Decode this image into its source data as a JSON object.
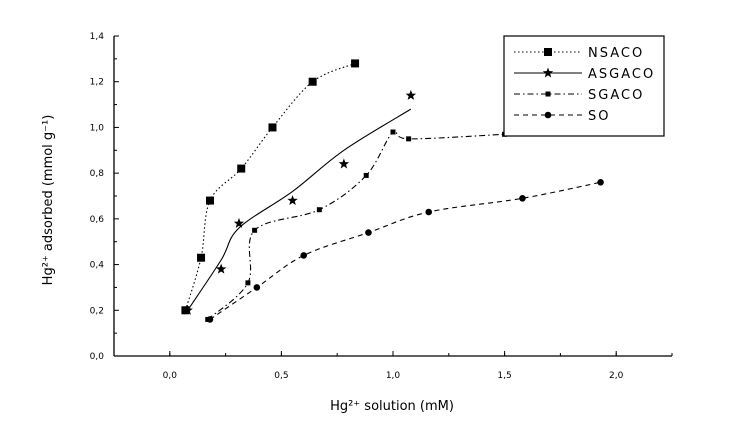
{
  "chart_data": {
    "type": "scatter",
    "xlabel": "Hg²⁺ solution (mM)",
    "ylabel": "Hg²⁺ adsorbed (mmol g⁻¹)",
    "xlim": [
      -0.25,
      2.25
    ],
    "ylim": [
      0.0,
      1.4
    ],
    "xticks": [
      0.0,
      0.5,
      1.0,
      1.5,
      2.0
    ],
    "xtick_labels": [
      "0,0",
      "0,5",
      "1,0",
      "1,5",
      "2,0"
    ],
    "yticks": [
      0.0,
      0.2,
      0.4,
      0.6,
      0.8,
      1.0,
      1.2,
      1.4
    ],
    "ytick_labels": [
      "0,0",
      "0,2",
      "0,4",
      "0,6",
      "0,8",
      "1,0",
      "1,2",
      "1,4"
    ],
    "legend_position": "top-right",
    "series": [
      {
        "name": "NSACO",
        "marker": "square",
        "line": "dotted",
        "x": [
          0.07,
          0.14,
          0.18,
          0.32,
          0.46,
          0.64,
          0.83
        ],
        "y": [
          0.2,
          0.43,
          0.68,
          0.82,
          1.0,
          1.2,
          1.28
        ]
      },
      {
        "name": "ASGACO",
        "marker": "star",
        "line": "solid",
        "x": [
          0.08,
          0.23,
          0.31,
          0.55,
          0.78,
          1.08
        ],
        "y": [
          0.2,
          0.38,
          0.58,
          0.68,
          0.84,
          1.14
        ],
        "curve_y": [
          0.2,
          0.42,
          0.56,
          0.72,
          0.9,
          1.08
        ]
      },
      {
        "name": "SGACO",
        "marker": "small-square",
        "line": "dash-dot",
        "x": [
          0.17,
          0.35,
          0.38,
          0.67,
          0.88,
          1.0,
          1.07,
          1.5
        ],
        "y": [
          0.16,
          0.32,
          0.55,
          0.64,
          0.79,
          0.98,
          0.95,
          0.97
        ]
      },
      {
        "name": "SO",
        "marker": "circle",
        "line": "dashed",
        "x": [
          0.18,
          0.39,
          0.6,
          0.89,
          1.16,
          1.58,
          1.93
        ],
        "y": [
          0.16,
          0.3,
          0.44,
          0.54,
          0.63,
          0.69,
          0.76
        ]
      }
    ]
  }
}
